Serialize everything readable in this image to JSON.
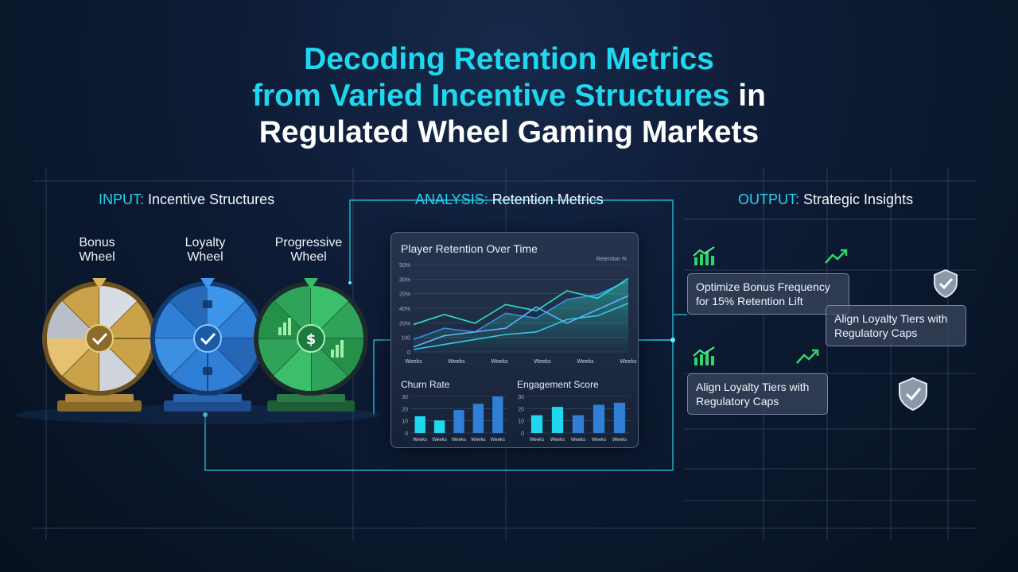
{
  "title": {
    "line1": "Decoding Retention Metrics",
    "line2_highlight": "from Varied Incentive Structures",
    "line2_rest": " in",
    "line3": "Regulated Wheel Gaming Markets"
  },
  "sections": {
    "input": {
      "key": "INPUT:",
      "label": " Incentive Structures"
    },
    "analysis": {
      "key": "ANALYSIS:",
      "label": " Retention Metrics"
    },
    "output": {
      "key": "OUTPUT:",
      "label": " Strategic Insights"
    }
  },
  "wheels": [
    {
      "line1": "Bonus",
      "line2": "Wheel",
      "color": "#c9a24a",
      "icon": "checkmark-icon"
    },
    {
      "line1": "Loyalty",
      "line2": "Wheel",
      "color": "#2f7fd6",
      "icon": "checkmark-icon"
    },
    {
      "line1": "Progressive",
      "line2": "Wheel",
      "color": "#2fa35a",
      "icon": "dollar-icon"
    }
  ],
  "dashboard": {
    "title": "Player Retention Over Time",
    "legend": "Retention %",
    "churn_title": "Churn Rate",
    "engagement_title": "Engagement Score"
  },
  "insights": [
    {
      "line1": "Optimize Bonus Frequency",
      "line2": "for 15% Retention Lift"
    },
    {
      "line1": "Align Loyalty Tiers with",
      "line2": "Regulatory Caps"
    },
    {
      "line1": "Align Loyalty Tiers with",
      "line2": "Regulatory Caps"
    }
  ],
  "colors": {
    "accent": "#1fd8f0",
    "line_blue": "#3a8fe8",
    "line_teal": "#2ee0c8"
  },
  "chart_data": [
    {
      "type": "line",
      "title": "Player Retention Over Time",
      "legend": [
        "Retention %"
      ],
      "yticks": [
        "50%",
        "30%",
        "20%",
        "40%",
        "20%",
        "100",
        "0"
      ],
      "xticks": [
        "Weeks",
        "Weeks",
        "Weeks",
        "Weeks",
        "Weeks",
        "Weeks"
      ],
      "ylim": [
        0,
        7
      ],
      "series": [
        {
          "values": [
            1.0,
            1.9,
            1.6,
            3.1,
            2.7,
            4.2,
            4.6,
            5.7
          ]
        },
        {
          "values": [
            2.2,
            3.0,
            2.3,
            3.8,
            3.3,
            4.9,
            4.3,
            5.9
          ]
        },
        {
          "values": [
            0.4,
            1.3,
            1.6,
            1.9,
            3.6,
            2.3,
            3.4,
            4.5
          ]
        },
        {
          "values": [
            0.2,
            0.6,
            1.0,
            1.4,
            1.6,
            2.6,
            2.9,
            3.9
          ]
        }
      ]
    },
    {
      "type": "bar",
      "title": "Churn Rate",
      "yticks": [
        "30",
        "20",
        "10",
        "0"
      ],
      "xticks": [
        "Weeks",
        "Weeks",
        "Weeks",
        "Weeks",
        "Weeks"
      ],
      "ylim": [
        0,
        35
      ],
      "values": [
        16,
        12,
        22,
        28,
        35
      ]
    },
    {
      "type": "bar",
      "title": "Engagement Score",
      "yticks": [
        "30",
        "20",
        "10",
        "0"
      ],
      "xticks": [
        "Weeks",
        "Weeks",
        "Weeks",
        "Weeks",
        "Weeks"
      ],
      "ylim": [
        0,
        35
      ],
      "values": [
        17,
        25,
        17,
        27,
        29
      ]
    }
  ]
}
